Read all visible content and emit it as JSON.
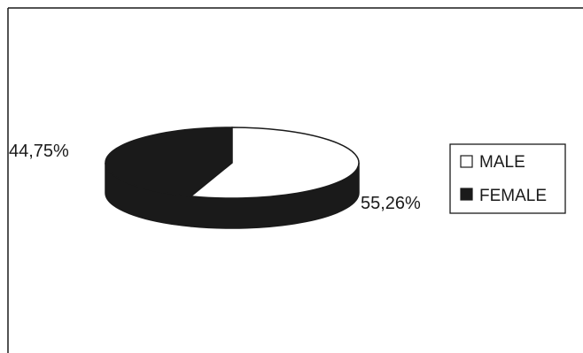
{
  "chart_data": {
    "type": "pie",
    "title": "",
    "slices": [
      {
        "label": "MALE",
        "value": 55.26,
        "display": "55,26%",
        "color": "#ffffff"
      },
      {
        "label": "FEMALE",
        "value": 44.75,
        "display": "44,75%",
        "color": "#1a1a1a"
      }
    ],
    "three_d": true,
    "legend_position": "right",
    "legend": [
      {
        "label": "MALE",
        "color": "#ffffff"
      },
      {
        "label": "FEMALE",
        "color": "#1a1a1a"
      }
    ],
    "outline_color": "#1a1a1a"
  }
}
